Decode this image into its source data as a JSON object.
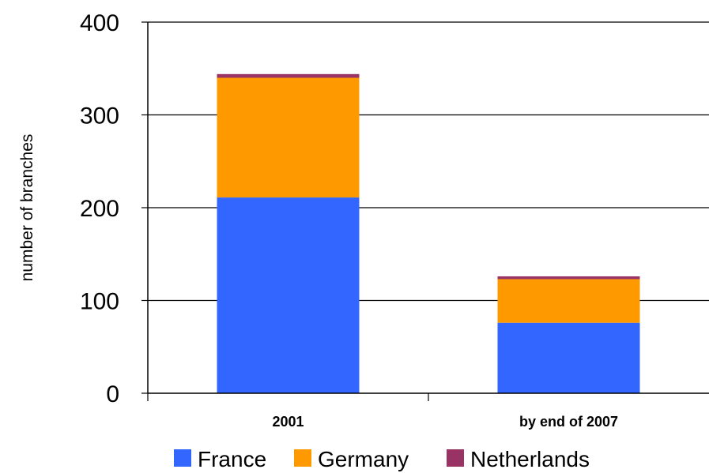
{
  "chart_data": {
    "type": "bar",
    "stacked": true,
    "categories": [
      "2001",
      "by end of 2007"
    ],
    "series": [
      {
        "name": "France",
        "color": "#3366FF",
        "values": [
          211,
          76
        ]
      },
      {
        "name": "Germany",
        "color": "#FF9900",
        "values": [
          129,
          47
        ]
      },
      {
        "name": "Netherlands",
        "color": "#993366",
        "values": [
          4,
          3
        ]
      }
    ],
    "title": "",
    "xlabel": "",
    "ylabel": "number of branches",
    "ylim": [
      0,
      400
    ],
    "yticks": [
      0,
      100,
      200,
      300,
      400
    ],
    "grid": true,
    "legend": "bottom"
  }
}
